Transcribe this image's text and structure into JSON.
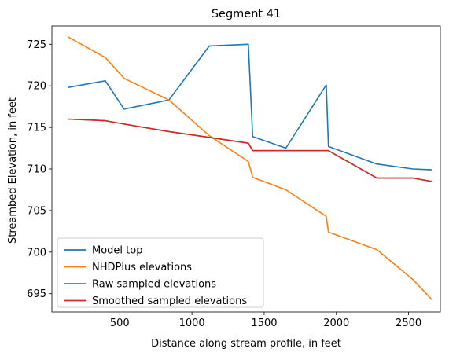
{
  "chart_data": {
    "type": "line",
    "title": "Segment 41",
    "xlabel": "Distance along stream profile, in feet",
    "ylabel": "Streambed Elevation, in feet",
    "xlim": [
      30,
      2720
    ],
    "ylim": [
      692.8,
      727.2
    ],
    "xticks": [
      500,
      1000,
      1500,
      2000,
      2500
    ],
    "yticks": [
      695,
      700,
      705,
      710,
      715,
      720,
      725
    ],
    "grid": false,
    "legend_position": "lower-left",
    "series": [
      {
        "name": "Model top",
        "color": "#1f77b4",
        "x": [
          140,
          400,
          530,
          840,
          1120,
          1390,
          1420,
          1650,
          1930,
          1945,
          2280,
          2530,
          2660
        ],
        "y": [
          719.8,
          720.6,
          717.2,
          718.3,
          724.8,
          725.0,
          713.9,
          712.5,
          720.1,
          712.7,
          710.6,
          710.0,
          709.9
        ]
      },
      {
        "name": "NHDPlus elevations",
        "color": "#ff7f0e",
        "x": [
          140,
          400,
          530,
          840,
          1120,
          1390,
          1420,
          1650,
          1930,
          1945,
          2280,
          2530,
          2660
        ],
        "y": [
          725.9,
          723.4,
          720.9,
          718.3,
          714.0,
          710.9,
          709.0,
          707.5,
          704.3,
          702.4,
          700.3,
          696.7,
          694.3
        ]
      },
      {
        "name": "Raw sampled elevations",
        "color": "#2ca02c",
        "x": [
          140,
          400,
          530,
          840,
          1120,
          1390,
          1420,
          1650,
          1930,
          1945,
          2280,
          2530,
          2660
        ],
        "y": [
          716.0,
          715.8,
          715.4,
          714.5,
          713.8,
          713.1,
          712.2,
          712.2,
          712.2,
          712.2,
          708.9,
          708.9,
          708.5
        ]
      },
      {
        "name": "Smoothed sampled elevations",
        "color": "#d62728",
        "x": [
          140,
          400,
          530,
          840,
          1120,
          1390,
          1420,
          1650,
          1930,
          1945,
          2280,
          2530,
          2660
        ],
        "y": [
          716.0,
          715.8,
          715.4,
          714.5,
          713.8,
          713.1,
          712.2,
          712.2,
          712.2,
          712.2,
          708.9,
          708.9,
          708.5
        ]
      }
    ]
  }
}
